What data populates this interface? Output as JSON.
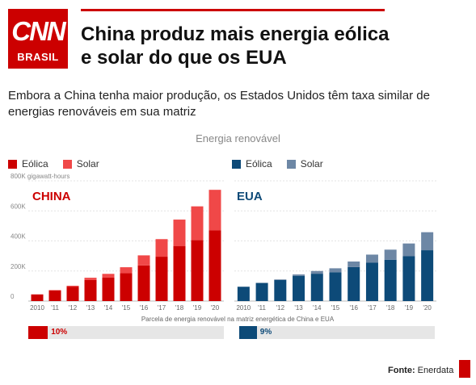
{
  "brand": {
    "logo_main": "CNN",
    "logo_sub": "BRASIL",
    "accent": "#cc0000"
  },
  "headline": "China produz mais energia eólica e solar do que os EUA",
  "subheadline": "Embora a China tenha maior produção, os Estados Unidos têm taxa similar de energias renováveis em sua matriz",
  "source": {
    "label": "Fonte:",
    "name": "Enerdata"
  },
  "chart_data": {
    "type": "bar",
    "stacked": true,
    "title": "Energia renovável",
    "ylabel": "gigawatt-hours",
    "ylim": [
      0,
      800000
    ],
    "yticks": [
      "0",
      "200K",
      "400K",
      "600K",
      "800K"
    ],
    "yticks_values": [
      0,
      200000,
      400000,
      600000,
      800000
    ],
    "categories": [
      "2010",
      "'11",
      "'12",
      "'13",
      "'14",
      "'15",
      "'16",
      "'17",
      "'18",
      "'19",
      "'20"
    ],
    "grid": true,
    "legend_position": "top-left",
    "panels": [
      {
        "label": "CHINA",
        "colors": {
          "Eólica": "#cc0000",
          "Solar": "#f04848"
        },
        "series": [
          {
            "name": "Eólica",
            "values": [
              44000,
              70000,
              96000,
              140000,
              156000,
              185000,
              237000,
              295000,
              365000,
              405000,
              470000
            ]
          },
          {
            "name": "Solar",
            "values": [
              1000,
              3000,
              6000,
              15000,
              25000,
              40000,
              67000,
              117000,
              177000,
              225000,
              270000
            ]
          }
        ],
        "share_percent": 10,
        "share_label": "10%"
      },
      {
        "label": "EUA",
        "colors": {
          "Eólica": "#0d4a78",
          "Solar": "#6d87a5"
        },
        "series": [
          {
            "name": "Eólica",
            "values": [
              95000,
              120000,
              140000,
              168000,
              182000,
              192000,
              226000,
              255000,
              275000,
              298000,
              338000
            ]
          },
          {
            "name": "Solar",
            "values": [
              1000,
              2000,
              4000,
              9000,
              18000,
              26000,
              37000,
              54000,
              67000,
              85000,
              120000
            ]
          }
        ],
        "share_percent": 9,
        "share_label": "9%"
      }
    ],
    "share_caption": "Parcela de energia renovável na matriz energética de China e EUA"
  }
}
